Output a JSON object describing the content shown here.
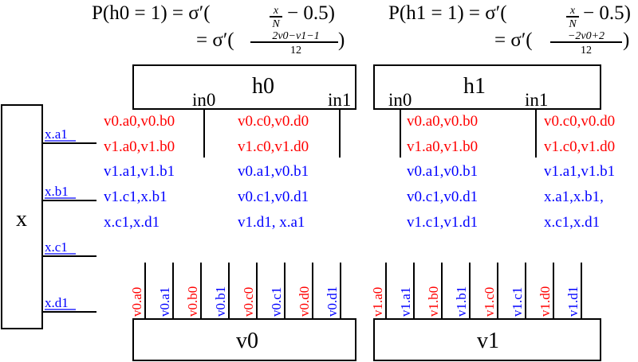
{
  "equations": {
    "h0_line1": "P(h0 = 1) = σ′(",
    "h0_line1_frac_num": "x",
    "h0_line1_frac_den": "N",
    "h0_line1_tail": "− 0.5)",
    "h0_line2": "= σ′(",
    "h0_line2_frac_num": "2v0−v1−1",
    "h0_line2_frac_den": "12",
    "h0_line2_tail": ")",
    "h1_line1": "P(h1 = 1) = σ′(",
    "h1_line1_frac_num": "x",
    "h1_line1_frac_den": "N",
    "h1_line1_tail": "− 0.5)",
    "h1_line2": "= σ′(",
    "h1_line2_frac_num": "−2v0+2",
    "h1_line2_frac_den": "12",
    "h1_line2_tail": ")"
  },
  "blocks": {
    "h0": "h0",
    "h1": "h1",
    "x": "x",
    "v0": "v0",
    "v1": "v1"
  },
  "ports": {
    "h0_in0": "in0",
    "h0_in1": "in1",
    "h1_in0": "in0",
    "h1_in1": "in1"
  },
  "h0_in0_tokens": [
    {
      "text": "v0.a0,v0.b0",
      "color": "#ff0000"
    },
    {
      "text": "v1.a0,v1.b0",
      "color": "#ff0000"
    },
    {
      "text": "v1.a1,v1.b1",
      "color": "#0000ff"
    },
    {
      "text": "v1.c1,x.b1",
      "color": "#0000ff"
    },
    {
      "text": "x.c1,x.d1",
      "color": "#0000ff"
    }
  ],
  "h0_in1_tokens": [
    {
      "text": "v0.c0,v0.d0",
      "color": "#ff0000"
    },
    {
      "text": "v1.c0,v1.d0",
      "color": "#ff0000"
    },
    {
      "text": "v0.a1,v0.b1",
      "color": "#0000ff"
    },
    {
      "text": "v0.c1,v0.d1",
      "color": "#0000ff"
    },
    {
      "text": "v1.d1, x.a1",
      "color": "#0000ff"
    }
  ],
  "h1_in0_tokens": [
    {
      "text": "v0.a0,v0.b0",
      "color": "#ff0000"
    },
    {
      "text": "v1.a0,v1.b0",
      "color": "#ff0000"
    },
    {
      "text": "v0.a1,v0.b1",
      "color": "#0000ff"
    },
    {
      "text": "v0.c1,v0.d1",
      "color": "#0000ff"
    },
    {
      "text": "v1.c1,v1.d1",
      "color": "#0000ff"
    }
  ],
  "h1_in1_tokens": [
    {
      "text": "v0.c0,v0.d0",
      "color": "#ff0000"
    },
    {
      "text": "v1.c0,v1.d0",
      "color": "#ff0000"
    },
    {
      "text": "v1.a1,v1.b1",
      "color": "#0000ff"
    },
    {
      "text": "x.a1,x.b1,",
      "color": "#0000ff"
    },
    {
      "text": "x.c1,x.d1",
      "color": "#0000ff"
    }
  ],
  "x_outputs": [
    "x.a1",
    "x.b1",
    "x.c1",
    "x.d1"
  ],
  "v0_outputs": [
    {
      "text": "v0.a0",
      "color": "#ff0000"
    },
    {
      "text": "v0.a1",
      "color": "#0000ff"
    },
    {
      "text": "v0.b0",
      "color": "#ff0000"
    },
    {
      "text": "v0.b1",
      "color": "#0000ff"
    },
    {
      "text": "v0.c0",
      "color": "#ff0000"
    },
    {
      "text": "v0.c1",
      "color": "#0000ff"
    },
    {
      "text": "v0.d0",
      "color": "#ff0000"
    },
    {
      "text": "v0.d1",
      "color": "#0000ff"
    }
  ],
  "v1_outputs": [
    {
      "text": "v1.a0",
      "color": "#ff0000"
    },
    {
      "text": "v1.a1",
      "color": "#0000ff"
    },
    {
      "text": "v1.b0",
      "color": "#ff0000"
    },
    {
      "text": "v1.b1",
      "color": "#0000ff"
    },
    {
      "text": "v1.c0",
      "color": "#ff0000"
    },
    {
      "text": "v1.c1",
      "color": "#0000ff"
    },
    {
      "text": "v1.d0",
      "color": "#ff0000"
    },
    {
      "text": "v1.d1",
      "color": "#0000ff"
    }
  ]
}
